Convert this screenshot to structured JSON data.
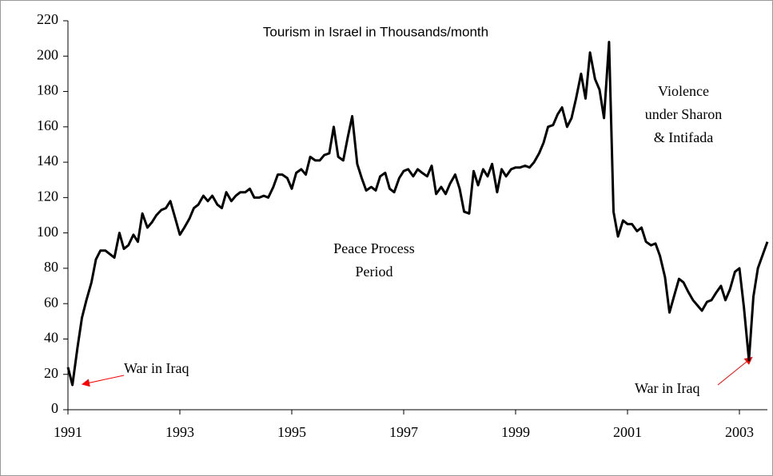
{
  "chart_data": {
    "type": "line",
    "title": "Tourism in Israel in Thousands/month",
    "annotations": [
      {
        "lines": [
          "Peace Process",
          "Period"
        ]
      },
      {
        "lines": [
          "Violence",
          "under Sharon",
          "& Intifada"
        ]
      },
      {
        "lines": [
          "War in Iraq"
        ]
      },
      {
        "lines": [
          "War in Iraq"
        ]
      }
    ],
    "xlim": [
      1991,
      2003.5
    ],
    "xticks": [
      1991,
      1993,
      1995,
      1997,
      1999,
      2001,
      2003
    ],
    "ylim": [
      0,
      220
    ],
    "yticks": [
      0,
      20,
      40,
      60,
      80,
      100,
      120,
      140,
      160,
      180,
      200,
      220
    ],
    "grid": false,
    "series": [
      {
        "color": "#000000",
        "x": [
          1991.0,
          1991.08,
          1991.17,
          1991.25,
          1991.33,
          1991.42,
          1991.5,
          1991.58,
          1991.67,
          1991.75,
          1991.83,
          1991.92,
          1992.0,
          1992.08,
          1992.17,
          1992.25,
          1992.33,
          1992.42,
          1992.5,
          1992.58,
          1992.67,
          1992.75,
          1992.83,
          1992.92,
          1993.0,
          1993.08,
          1993.17,
          1993.25,
          1993.33,
          1993.42,
          1993.5,
          1993.58,
          1993.67,
          1993.75,
          1993.83,
          1993.92,
          1994.0,
          1994.08,
          1994.17,
          1994.25,
          1994.33,
          1994.42,
          1994.5,
          1994.58,
          1994.67,
          1994.75,
          1994.83,
          1994.92,
          1995.0,
          1995.08,
          1995.17,
          1995.25,
          1995.33,
          1995.42,
          1995.5,
          1995.58,
          1995.67,
          1995.75,
          1995.83,
          1995.92,
          1996.0,
          1996.08,
          1996.17,
          1996.25,
          1996.33,
          1996.42,
          1996.5,
          1996.58,
          1996.67,
          1996.75,
          1996.83,
          1996.92,
          1997.0,
          1997.08,
          1997.17,
          1997.25,
          1997.33,
          1997.42,
          1997.5,
          1997.58,
          1997.67,
          1997.75,
          1997.83,
          1997.92,
          1998.0,
          1998.08,
          1998.17,
          1998.25,
          1998.33,
          1998.42,
          1998.5,
          1998.58,
          1998.67,
          1998.75,
          1998.83,
          1998.92,
          1999.0,
          1999.08,
          1999.17,
          1999.25,
          1999.33,
          1999.42,
          1999.5,
          1999.58,
          1999.67,
          1999.75,
          1999.83,
          1999.92,
          2000.0,
          2000.08,
          2000.17,
          2000.25,
          2000.33,
          2000.42,
          2000.5,
          2000.58,
          2000.67,
          2000.75,
          2000.83,
          2000.92,
          2001.0,
          2001.08,
          2001.17,
          2001.25,
          2001.33,
          2001.42,
          2001.5,
          2001.58,
          2001.67,
          2001.75,
          2001.83,
          2001.92,
          2002.0,
          2002.08,
          2002.17,
          2002.25,
          2002.33,
          2002.42,
          2002.5,
          2002.58,
          2002.67,
          2002.75,
          2002.83,
          2002.92,
          2003.0,
          2003.08,
          2003.17,
          2003.25,
          2003.33,
          2003.42,
          2003.5
        ],
        "values": [
          24,
          14,
          35,
          52,
          62,
          72,
          85,
          90,
          90,
          88,
          86,
          100,
          91,
          93,
          99,
          95,
          111,
          103,
          106,
          110,
          113,
          114,
          118,
          108,
          99,
          103,
          108,
          114,
          116,
          121,
          118,
          121,
          116,
          114,
          123,
          118,
          121,
          123,
          123,
          125,
          120,
          120,
          121,
          120,
          126,
          133,
          133,
          131,
          125,
          134,
          136,
          133,
          143,
          141,
          141,
          144,
          145,
          160,
          143,
          141,
          154,
          166,
          139,
          131,
          124,
          126,
          124,
          132,
          134,
          125,
          123,
          131,
          135,
          136,
          132,
          136,
          134,
          132,
          138,
          122,
          126,
          122,
          128,
          133,
          125,
          112,
          111,
          135,
          127,
          136,
          132,
          139,
          123,
          136,
          132,
          136,
          137,
          137,
          138,
          137,
          140,
          145,
          151,
          160,
          161,
          167,
          171,
          160,
          165,
          176,
          190,
          176,
          202,
          187,
          181,
          165,
          208,
          112,
          98,
          107,
          105,
          105,
          101,
          103,
          95,
          93,
          94,
          87,
          75,
          55,
          64,
          74,
          72,
          67,
          62,
          59,
          56,
          61,
          62,
          66,
          70,
          62,
          68,
          78,
          80,
          58,
          28,
          64,
          80,
          88,
          95
        ]
      }
    ]
  }
}
